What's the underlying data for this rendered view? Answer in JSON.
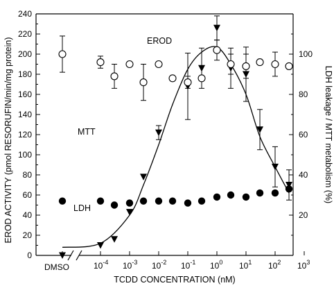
{
  "chart_data": {
    "type": "scatter",
    "title": "",
    "xlabel": "TCDD CONCENTRATION (nM)",
    "ylabel_left": "EROD ACTIVITY (pmol RESORUFIN/min/mg protein)",
    "ylabel_right": "LDH leakage / MTT metabolism (%)",
    "x_scale": "log",
    "xlim": [
      0.0001,
      1000
    ],
    "ylim_left": [
      0,
      240
    ],
    "ylim_right": [
      0,
      120
    ],
    "left_ticks": [
      "0",
      "20",
      "40",
      "60",
      "80",
      "100",
      "120",
      "140",
      "160",
      "180",
      "200",
      "220",
      "240"
    ],
    "right_ticks": [
      "20",
      "40",
      "60",
      "80",
      "100"
    ],
    "x_ticks": [
      "10",
      "-4",
      "10",
      "-3",
      "10",
      "-2",
      "10",
      "-1",
      "10",
      "0",
      "10",
      "1",
      "10",
      "2",
      "10",
      "3"
    ],
    "control_label": "DMSO",
    "grid": false,
    "series": [
      {
        "name": "EROD",
        "axis": "left",
        "marker": "filled-triangle-down",
        "points": [
          {
            "x": "DMSO",
            "y": 0
          },
          {
            "x": 0.0001,
            "y": 10
          },
          {
            "x": 0.0003,
            "y": 16
          },
          {
            "x": 0.001,
            "y": 43
          },
          {
            "x": 0.003,
            "y": 78
          },
          {
            "x": 0.01,
            "y": 122,
            "err": 7
          },
          {
            "x": 0.1,
            "y": 168,
            "err": 33
          },
          {
            "x": 0.3,
            "y": 186,
            "err": 20
          },
          {
            "x": 1,
            "y": 226,
            "err": 12
          },
          {
            "x": 3,
            "y": 186,
            "err": 20
          },
          {
            "x": 10,
            "y": 180,
            "err": 27
          },
          {
            "x": 30,
            "y": 125,
            "err": 20
          },
          {
            "x": 100,
            "y": 88,
            "err": 20
          },
          {
            "x": 300,
            "y": 70,
            "err": 15
          }
        ],
        "fit_curve": {
          "x": [
            "DMSO",
            0.0001,
            0.001,
            0.003,
            0.01,
            0.03,
            0.1,
            0.3,
            1,
            3,
            10,
            30,
            100,
            300
          ],
          "y": [
            8,
            12,
            40,
            70,
            110,
            150,
            185,
            202,
            207,
            190,
            160,
            118,
            88,
            62
          ]
        }
      },
      {
        "name": "MTT",
        "axis": "right",
        "marker": "open-circle",
        "points": [
          {
            "x": "DMSO",
            "y": 100,
            "err": 9
          },
          {
            "x": 0.0001,
            "y": 96,
            "err": 3
          },
          {
            "x": 0.0003,
            "y": 89,
            "err": 6
          },
          {
            "x": 0.001,
            "y": 95
          },
          {
            "x": 0.003,
            "y": 86,
            "err": 9
          },
          {
            "x": 0.01,
            "y": 95
          },
          {
            "x": 0.03,
            "y": 88
          },
          {
            "x": 0.1,
            "y": 86,
            "err": 3
          },
          {
            "x": 0.3,
            "y": 88
          },
          {
            "x": 1,
            "y": 102,
            "err": 5
          },
          {
            "x": 3,
            "y": 95,
            "err": 5
          },
          {
            "x": 10,
            "y": 94,
            "err": 6
          },
          {
            "x": 30,
            "y": 96
          },
          {
            "x": 100,
            "y": 95,
            "err": 6
          },
          {
            "x": 300,
            "y": 94
          }
        ]
      },
      {
        "name": "LDH",
        "axis": "right",
        "marker": "filled-circle",
        "points": [
          {
            "x": "DMSO",
            "y": 27
          },
          {
            "x": 0.0001,
            "y": 27
          },
          {
            "x": 0.0003,
            "y": 25
          },
          {
            "x": 0.001,
            "y": 26
          },
          {
            "x": 0.003,
            "y": 27
          },
          {
            "x": 0.01,
            "y": 27
          },
          {
            "x": 0.03,
            "y": 27
          },
          {
            "x": 0.1,
            "y": 26
          },
          {
            "x": 0.3,
            "y": 27
          },
          {
            "x": 1,
            "y": 29
          },
          {
            "x": 3,
            "y": 30
          },
          {
            "x": 10,
            "y": 29
          },
          {
            "x": 30,
            "y": 31
          },
          {
            "x": 100,
            "y": 31
          },
          {
            "x": 300,
            "y": 33
          }
        ]
      }
    ]
  }
}
